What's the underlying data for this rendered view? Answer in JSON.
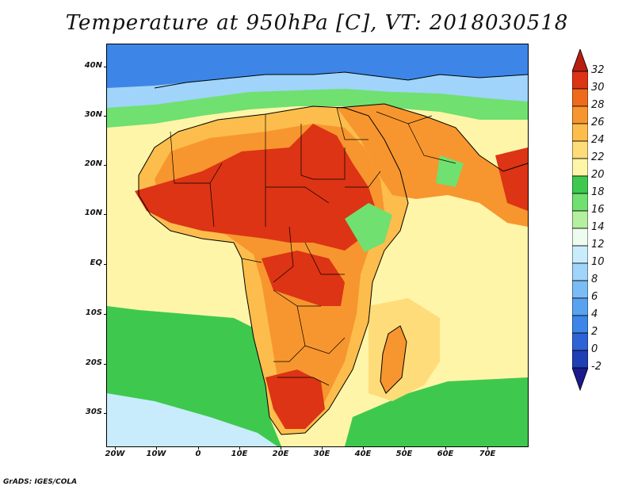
{
  "title": "Temperature at 950hPa [C], VT: 2018030518",
  "footer": "GrADS: IGES/COLA",
  "lat_labels": [
    "40N",
    "30N",
    "20N",
    "10N",
    "EQ",
    "10S",
    "20S",
    "30S"
  ],
  "lon_labels": [
    "20W",
    "10W",
    "0",
    "10E",
    "20E",
    "30E",
    "40E",
    "50E",
    "60E",
    "70E"
  ],
  "colorbar": {
    "labels": [
      "-2",
      "0",
      "2",
      "4",
      "6",
      "8",
      "10",
      "12",
      "14",
      "16",
      "18",
      "20",
      "22",
      "24",
      "26",
      "28",
      "30",
      "32"
    ],
    "colors": [
      "#1a1a8c",
      "#1f3fb4",
      "#2d63d6",
      "#3d86e8",
      "#58a2f0",
      "#7bbcf5",
      "#a0d4fa",
      "#c8ecfc",
      "#eefcf0",
      "#b4f0a0",
      "#70e070",
      "#3ec94e",
      "#fff5a8",
      "#fedc7a",
      "#fcbd4c",
      "#f7962e",
      "#f06a1c",
      "#dc3414",
      "#b81e10"
    ]
  },
  "regions": {
    "ocean_temperate": "#3ec94e",
    "ocean_warm": "#fedc7a",
    "ocean_mid": "#fff5a8",
    "land_hot": "#dc3414",
    "land_warm": "#f7962e",
    "land_mild": "#fcbd4c",
    "highland_cool": "#70e070",
    "north_cold": "#3d86e8",
    "north_cool": "#a0d4fa",
    "south_cool": "#c8ecfc"
  }
}
